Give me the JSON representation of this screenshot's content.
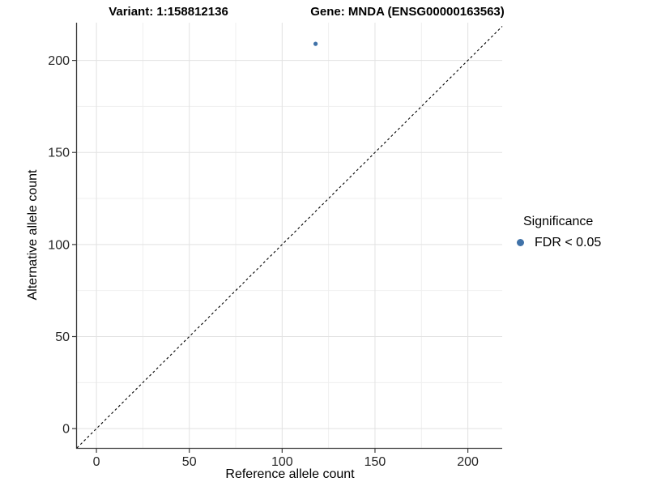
{
  "chart_data": {
    "type": "scatter",
    "title_left": "Variant: 1:158812136",
    "title_right": "Gene: MNDA (ENSG00000163563)",
    "xlabel": "Reference allele count",
    "ylabel": "Alternative allele count",
    "legend_title": "Significance",
    "legend_position": "right",
    "xlim": [
      -10.5,
      218.5
    ],
    "ylim": [
      -10.5,
      220.5
    ],
    "x_ticks": [
      0,
      50,
      100,
      150,
      200
    ],
    "y_ticks": [
      0,
      50,
      100,
      150,
      200
    ],
    "x_minor_ticks": [
      25,
      75,
      125,
      175
    ],
    "y_minor_ticks": [
      25,
      75,
      125,
      175
    ],
    "grid": "major+minor",
    "series": [
      {
        "name": "FDR < 0.05",
        "color": "#4072a8",
        "points": [
          {
            "x": 118,
            "y": 209
          }
        ]
      }
    ],
    "reference_line": {
      "equation": "y = x",
      "style": "dashed",
      "color": "#000000"
    }
  },
  "colors": {
    "background": "#ffffff",
    "axis": "#3c3c3c",
    "tick_label": "#262626",
    "grid_major": "#e2e2e2",
    "grid_minor": "#efefef"
  }
}
